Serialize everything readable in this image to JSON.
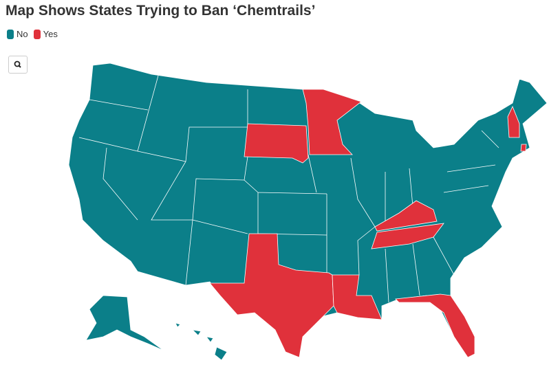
{
  "title": "Map Shows States Trying to Ban ‘Chemtrails’",
  "legend": [
    {
      "label": "No",
      "color": "#0b7f89"
    },
    {
      "label": "Yes",
      "color": "#e0313b"
    }
  ]
}
